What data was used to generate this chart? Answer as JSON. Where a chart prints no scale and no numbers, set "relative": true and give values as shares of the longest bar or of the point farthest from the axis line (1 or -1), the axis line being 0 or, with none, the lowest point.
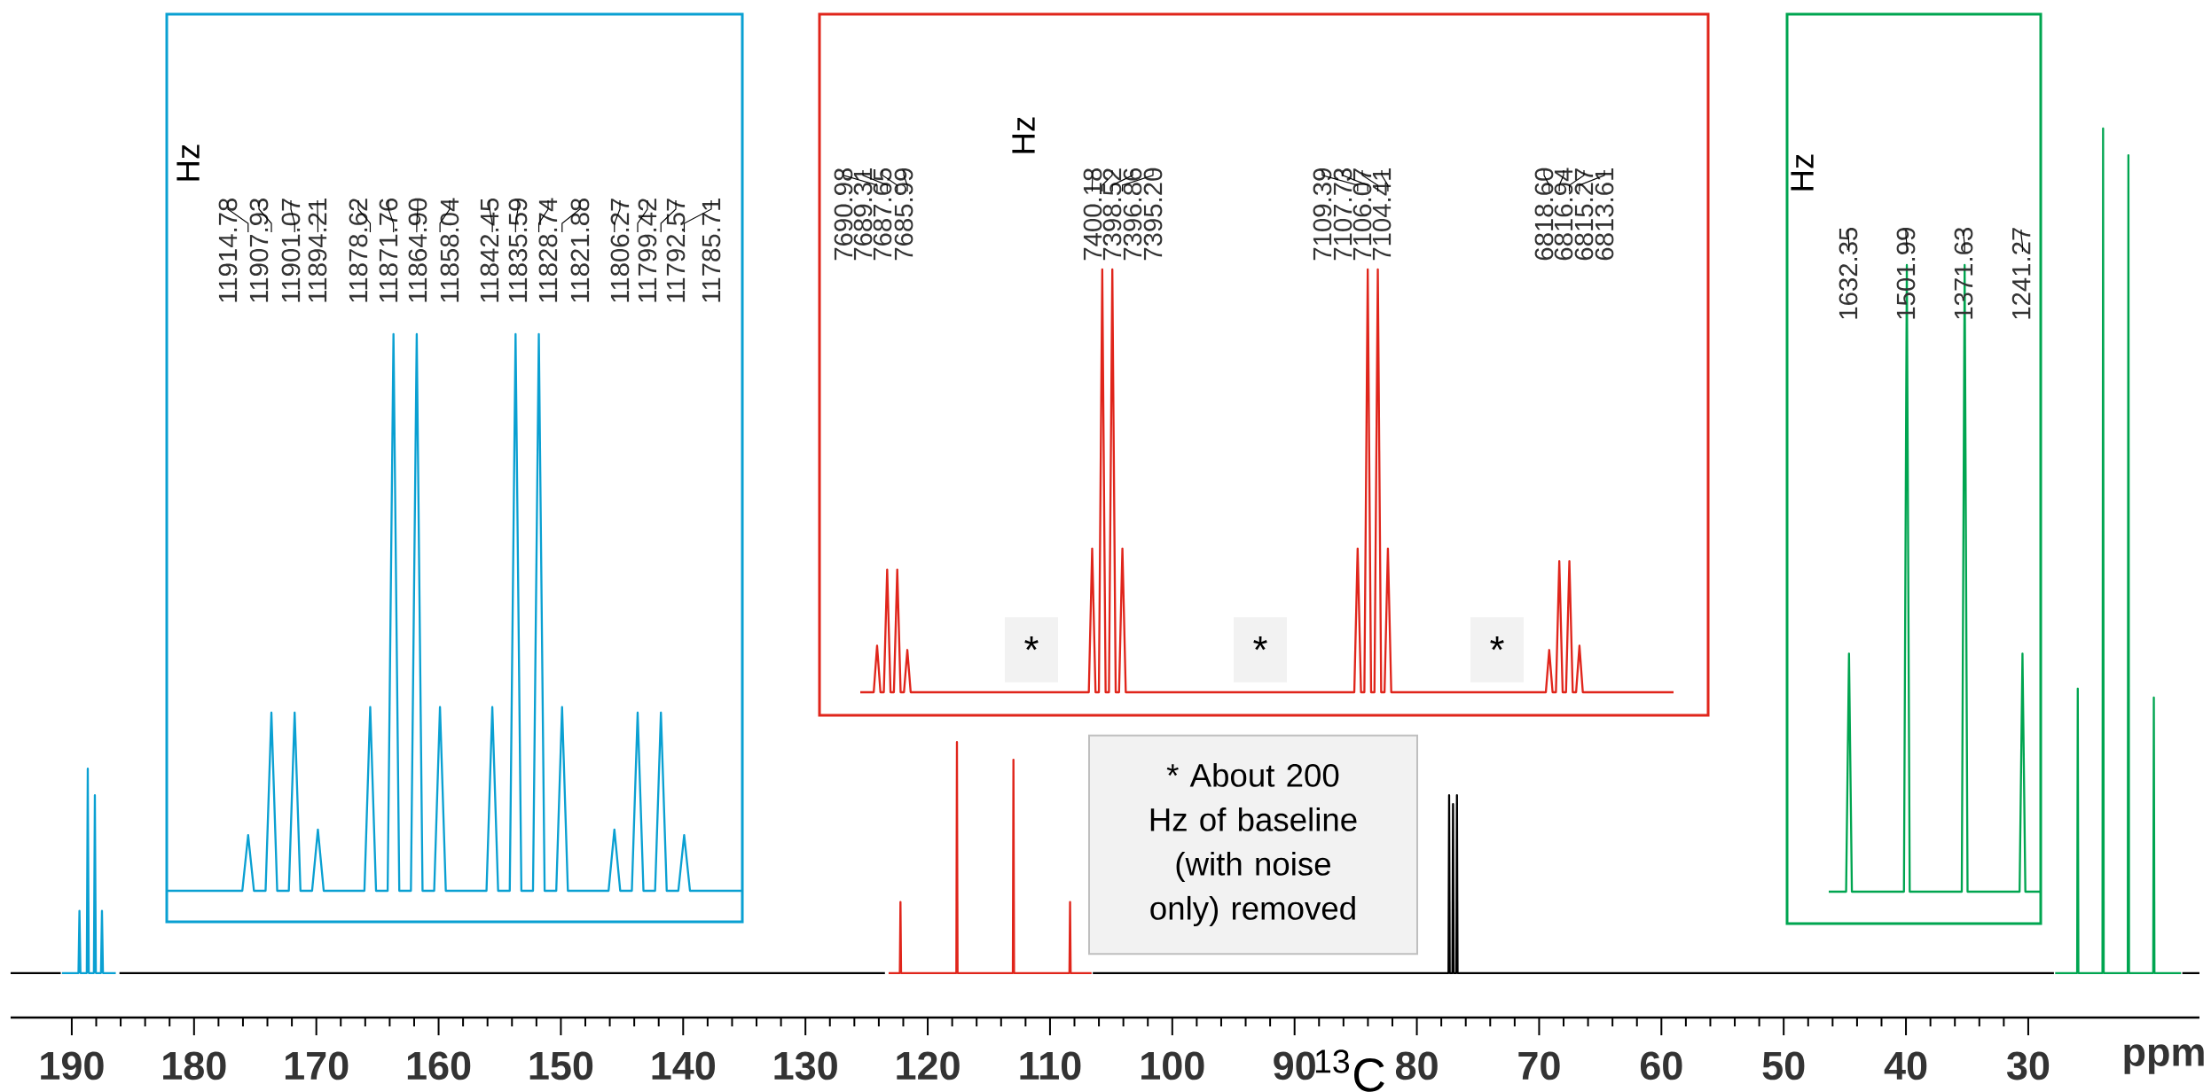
{
  "chart_data": [
    {
      "type": "line",
      "relative": true,
      "tick_labels": "x",
      "xlabel": "ppm",
      "xlim": [
        195,
        16
      ],
      "xticks": [
        190,
        180,
        170,
        160,
        150,
        140,
        130,
        120,
        110,
        100,
        90,
        80,
        70,
        60,
        50,
        40,
        30
      ],
      "annotations": [
        "$^{13}$C",
        "* About 200 Hz of baseline (with noise only) removed"
      ],
      "series": [
        {
          "color": "#000000",
          "x": [
            195,
            190.9,
            190.85,
            186.1,
            123.5,
            123.45,
            106.5,
            77.5,
            77.41,
            77.36,
            77.31,
            77.09,
            77.04,
            76.99,
            76.77,
            76.72,
            76.67,
            27.9,
            27.85,
            17.4,
            16
          ],
          "values": [
            0.05,
            0.05,
            null,
            0.05,
            0.05,
            null,
            0.05,
            0.05,
            0.05,
            0.25,
            0.05,
            0.05,
            0.24,
            0.05,
            0.05,
            0.25,
            0.05,
            0.05,
            null,
            0.05,
            0.05
          ]
        },
        {
          "color": "#0aa0d2",
          "x": [
            190.8,
            189.45,
            189.37,
            189.29,
            188.77,
            188.69,
            188.61,
            188.19,
            188.11,
            188.03,
            187.61,
            187.53,
            187.45,
            186.4
          ],
          "values": [
            0.05,
            0.05,
            0.12,
            0.05,
            0.05,
            0.28,
            0.05,
            0.05,
            0.25,
            0.05,
            0.05,
            0.12,
            0.05,
            0.05
          ]
        },
        {
          "color": "#e0251b",
          "x": [
            123.2,
            122.28,
            122.23,
            122.18,
            117.66,
            117.61,
            117.56,
            113.04,
            112.99,
            112.94,
            108.41,
            108.36,
            108.31,
            106.6
          ],
          "values": [
            0.05,
            0.05,
            0.13,
            0.05,
            0.05,
            0.31,
            0.05,
            0.05,
            0.29,
            0.05,
            0.05,
            0.13,
            0.05,
            0.05
          ]
        },
        {
          "color": "#00a550",
          "x": [
            27.8,
            26.0,
            25.95,
            25.9,
            23.93,
            23.88,
            23.83,
            21.86,
            21.81,
            21.76,
            19.78,
            19.73,
            19.68,
            17.5
          ],
          "values": [
            0.05,
            0.05,
            0.37,
            0.05,
            0.05,
            1,
            0.05,
            0.05,
            0.97,
            0.05,
            0.05,
            0.36,
            0.05,
            0.05
          ]
        }
      ]
    },
    {
      "type": "line",
      "relative": true,
      "tick_labels": false,
      "categories": [
        null,
        null,
        null,
        null,
        null,
        null,
        null,
        null,
        null,
        null,
        null,
        null,
        null,
        null,
        null,
        null,
        null,
        null,
        null,
        null,
        null,
        null,
        null,
        null,
        null,
        null,
        null,
        null,
        null,
        null,
        null,
        null,
        null,
        null,
        null,
        null,
        null,
        null,
        null,
        null,
        null,
        null,
        null,
        null,
        null,
        null,
        null,
        null,
        null,
        null,
        null,
        null,
        null,
        null,
        null,
        null,
        null,
        null,
        null,
        null,
        null,
        null,
        null,
        null,
        null,
        null,
        null,
        null,
        null,
        null,
        null,
        null,
        null,
        null,
        null,
        null,
        null,
        null,
        null,
        null,
        null,
        null,
        null,
        null,
        null,
        null,
        null,
        null,
        null,
        null,
        null,
        null,
        null,
        null,
        null,
        null,
        null,
        null,
        null,
        null
      ],
      "annotations": [
        "11914.78",
        "11907.93",
        "11901.07",
        "11894.21",
        "11878.62",
        "11871.76",
        "11864.90",
        "11858.04",
        "11842.45",
        "11835.59",
        "11828.74",
        "11821.88",
        "11806.27",
        "11799.42",
        "11792.57",
        "11785.71",
        "Hz"
      ],
      "series": [
        {
          "color": "#0aa0d2",
          "values": [
            0,
            0,
            0,
            0,
            0,
            0,
            0,
            0,
            0,
            0,
            0,
            0,
            0,
            0,
            0.1,
            0,
            0,
            0,
            0.32,
            0,
            0,
            0,
            0.32,
            0,
            0,
            0,
            0.11,
            0,
            0,
            0,
            0,
            0,
            0,
            0,
            0,
            0.33,
            0,
            0,
            0,
            1,
            0,
            0,
            0,
            1,
            0,
            0,
            0,
            0.33,
            0,
            0,
            0,
            0,
            0,
            0,
            0,
            0,
            0.33,
            0,
            0,
            0,
            1,
            0,
            0,
            0,
            1,
            0,
            0,
            0,
            0.33,
            0,
            0,
            0,
            0,
            0,
            0,
            0,
            0,
            0.11,
            0,
            0,
            0,
            0.32,
            0,
            0,
            0,
            0.32,
            0,
            0,
            0,
            0.1,
            0,
            0,
            0,
            0,
            0,
            0,
            0,
            0,
            0,
            0
          ]
        }
      ]
    },
    {
      "type": "line",
      "relative": true,
      "tick_labels": false,
      "categories": [
        null,
        null,
        null,
        null,
        null,
        null,
        null,
        null,
        null,
        null,
        null,
        null,
        null,
        null,
        null,
        null,
        null,
        null,
        null,
        null,
        null,
        null,
        null,
        null,
        null,
        null,
        null,
        null,
        null,
        null,
        null,
        null,
        null,
        null,
        null,
        null,
        null,
        null,
        null,
        null,
        null,
        null,
        null,
        null,
        null,
        null,
        null,
        null,
        null,
        null,
        null,
        null,
        null,
        null,
        null,
        null,
        null,
        null,
        null,
        null,
        null,
        null,
        null,
        null,
        null,
        null,
        null,
        null,
        null,
        null,
        null,
        null,
        null,
        null,
        null,
        null,
        null,
        null,
        null,
        null,
        null,
        null,
        null,
        null,
        null,
        null,
        null,
        null,
        null,
        null,
        null,
        null,
        null,
        null,
        null,
        null,
        null,
        null,
        null,
        null,
        null,
        null,
        null,
        null,
        null,
        null,
        null,
        null,
        null,
        null,
        null,
        null,
        null,
        null,
        null,
        null,
        null,
        null,
        null,
        null,
        null,
        null,
        null,
        null,
        null,
        null,
        null,
        null,
        null,
        null,
        null,
        null,
        null,
        null,
        null,
        null,
        null,
        null,
        null,
        null,
        null,
        null,
        null,
        null,
        null,
        null,
        null,
        null,
        null,
        null,
        null,
        null,
        null,
        null,
        null,
        null,
        null,
        null,
        null,
        null,
        null,
        null,
        null,
        null,
        null,
        null,
        null,
        null,
        null,
        null,
        null,
        null,
        null,
        null,
        null,
        null,
        null,
        null,
        null,
        null,
        null,
        null,
        null,
        null,
        null,
        null,
        null,
        null,
        null,
        null,
        null,
        null,
        null,
        null,
        null,
        null,
        null,
        null,
        null,
        null,
        null,
        null,
        null,
        null,
        null,
        null,
        null,
        null,
        null,
        null,
        null,
        null,
        null,
        null,
        null,
        null,
        null,
        null,
        null,
        null,
        null,
        null,
        null,
        null,
        null,
        null,
        null,
        null,
        null,
        null,
        null,
        null,
        null,
        null,
        null,
        null,
        null,
        null,
        null,
        null,
        null,
        null,
        null
      ],
      "annotations": [
        "7690.98",
        "7689.31",
        "7687.65",
        "7685.99",
        "7400.18",
        "7398.52",
        "7396.86",
        "7395.20",
        "7109.39",
        "7107.73",
        "7106.07",
        "7104.41",
        "6818.60",
        "6816.94",
        "6815.27",
        "6813.61",
        "Hz",
        "*",
        "*",
        "*"
      ],
      "series": [
        {
          "color": "#e0251b",
          "values": [
            0,
            0,
            0,
            0,
            0,
            0.11,
            0,
            0,
            0.29,
            0,
            0,
            0.29,
            0,
            0,
            0.1,
            0,
            0,
            0,
            0,
            0,
            0,
            0,
            0,
            0,
            0,
            0,
            0,
            0,
            0,
            0,
            0,
            0,
            0,
            0,
            0,
            0,
            0,
            0,
            0,
            0,
            0,
            0,
            0,
            0,
            0,
            0,
            0,
            0,
            0,
            0,
            0,
            0,
            0,
            0,
            0,
            0,
            0,
            0,
            0,
            0,
            0,
            0,
            0,
            0,
            0,
            0,
            0,
            0,
            0,
            0.34,
            0,
            0,
            1,
            0,
            0,
            1,
            0,
            0,
            0.34,
            0,
            0,
            0,
            0,
            0,
            0,
            0,
            0,
            0,
            0,
            0,
            0,
            0,
            0,
            0,
            0,
            0,
            0,
            0,
            0,
            0,
            0,
            0,
            0,
            0,
            0,
            0,
            0,
            0,
            0,
            0,
            0,
            0,
            0,
            0,
            0,
            0,
            0,
            0,
            0,
            0,
            0,
            0,
            0,
            0,
            0,
            0,
            0,
            0,
            0,
            0,
            0,
            0,
            0,
            0,
            0,
            0,
            0,
            0,
            0,
            0,
            0,
            0,
            0,
            0,
            0,
            0,
            0,
            0,
            0.34,
            0,
            0,
            1,
            0,
            0,
            1,
            0,
            0,
            0.34,
            0,
            0,
            0,
            0,
            0,
            0,
            0,
            0,
            0,
            0,
            0,
            0,
            0,
            0,
            0,
            0,
            0,
            0,
            0,
            0,
            0,
            0,
            0,
            0,
            0,
            0,
            0,
            0,
            0,
            0,
            0,
            0,
            0,
            0,
            0,
            0,
            0,
            0,
            0,
            0,
            0,
            0,
            0,
            0,
            0,
            0,
            0,
            0.1,
            0,
            0,
            0.31,
            0,
            0,
            0.31,
            0,
            0,
            0.11,
            0,
            0,
            0,
            0,
            0,
            0,
            0,
            0,
            0,
            0,
            0,
            0,
            0,
            0,
            0,
            0,
            0,
            0,
            0,
            0,
            0,
            0,
            0,
            0,
            0,
            0,
            0,
            0
          ]
        }
      ]
    },
    {
      "type": "line",
      "relative": true,
      "tick_labels": false,
      "categories": [
        null,
        null,
        null,
        null,
        null,
        null,
        null,
        null,
        null,
        null,
        null,
        null,
        null,
        null,
        null,
        null,
        null,
        null,
        null,
        null,
        null,
        null,
        null,
        null,
        null,
        null,
        null,
        null,
        null,
        null,
        null,
        null,
        null,
        null,
        null,
        null,
        null,
        null,
        null,
        null,
        null,
        null,
        null,
        null,
        null,
        null,
        null,
        null,
        null,
        null,
        null,
        null,
        null,
        null,
        null,
        null,
        null,
        null,
        null,
        null,
        null,
        null,
        null,
        null,
        null,
        null,
        null,
        null,
        null,
        null,
        null,
        null,
        null,
        null
      ],
      "annotations": [
        "1632.35",
        "1501.99",
        "1371.63",
        "1241.27",
        "Hz"
      ],
      "series": [
        {
          "color": "#00a550",
          "values": [
            0,
            0,
            0,
            0,
            0,
            0,
            0,
            0.38,
            0,
            0,
            0,
            0,
            0,
            0,
            0,
            0,
            0,
            0,
            0,
            0,
            0,
            0,
            0,
            0,
            0,
            0,
            0,
            1,
            0,
            0,
            0,
            0,
            0,
            0,
            0,
            0,
            0,
            0,
            0,
            0,
            0,
            0,
            0,
            0,
            0,
            0,
            0,
            1,
            0,
            0,
            0,
            0,
            0,
            0,
            0,
            0,
            0,
            0,
            0,
            0,
            0,
            0,
            0,
            0,
            0,
            0,
            0,
            0.38,
            0,
            0,
            0,
            0,
            0,
            0
          ]
        }
      ]
    }
  ]
}
